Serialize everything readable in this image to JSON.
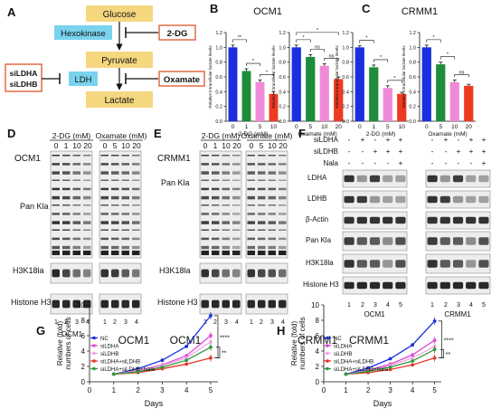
{
  "panel_labels": [
    "A",
    "B",
    "C",
    "D",
    "E",
    "F",
    "G",
    "H"
  ],
  "panel_a": {
    "metabolites": [
      "Glucose",
      "Pyruvate",
      "Lactate"
    ],
    "enzymes": [
      "Hexokinase",
      "LDH"
    ],
    "inhibitors": [
      "2-DG",
      "Oxamate"
    ],
    "knockdown": [
      "siLDHA",
      "siLDHB"
    ],
    "colors": {
      "metabolite": "#f5d77f",
      "enzyme": "#79d3ee",
      "inhibitor_border": "#e0603a"
    }
  },
  "blot_labels": {
    "pan_kla": "Pan Kla",
    "h3k18la": "H3K18la",
    "histone_h3": "Histone H3",
    "ldha": "LDHA",
    "ldhb": "LDHB",
    "beta_actin": "β-Actin",
    "lanes_4": [
      "1",
      "2",
      "3",
      "4"
    ],
    "lanes_5": [
      "1",
      "2",
      "3",
      "4",
      "5"
    ]
  },
  "panel_d": {
    "cell": "OCM1",
    "treat1": "2-DG (mM)",
    "treat2": "Oxamate (mM)",
    "doses1": [
      "0",
      "1",
      "10",
      "20"
    ],
    "doses2": [
      "0",
      "5",
      "10",
      "20"
    ]
  },
  "panel_e": {
    "cell": "CRMM1",
    "treat1": "2-DG (mM)",
    "treat2": "Oxamate (mM)",
    "doses1": [
      "0",
      "1",
      "10",
      "20"
    ],
    "doses2": [
      "0",
      "5",
      "10",
      "20"
    ]
  },
  "panel_f": {
    "conditions": [
      "siLDHA",
      "siLDHB",
      "Nala"
    ],
    "signs": [
      [
        "-",
        "+",
        "-",
        "+",
        "+"
      ],
      [
        "-",
        "-",
        "+",
        "+",
        "+"
      ],
      [
        "-",
        "-",
        "-",
        "-",
        "+"
      ]
    ],
    "cells": [
      "OCM1",
      "CRMM1"
    ]
  },
  "chart_data": [
    {
      "panel": "B",
      "type": "bar",
      "title": "OCM1",
      "xlabel": "2-DG (mM)",
      "ylabel": "Relative intracellular lactate levels",
      "categories": [
        "0",
        "1",
        "5",
        "10"
      ],
      "values": [
        1.0,
        0.68,
        0.53,
        0.37
      ],
      "errors": [
        0.03,
        0.03,
        0.03,
        0.03
      ],
      "ylim": [
        0,
        1.2
      ],
      "yticks": [
        "0.0",
        "0.2",
        "0.4",
        "0.6",
        "0.8",
        "1.0",
        "1.2"
      ],
      "colors": [
        "#1b2fe0",
        "#1e8c3a",
        "#f08ad8",
        "#ef3a22"
      ],
      "significance": [
        "**",
        "*",
        "*"
      ]
    },
    {
      "panel": "B",
      "type": "bar",
      "title": "",
      "xlabel": "Oxamate (mM)",
      "ylabel": "Relative intracellular lactate levels",
      "categories": [
        "0",
        "5",
        "10",
        "20"
      ],
      "values": [
        1.0,
        0.87,
        0.75,
        0.57
      ],
      "errors": [
        0.03,
        0.03,
        0.03,
        0.03
      ],
      "ylim": [
        0,
        1.2
      ],
      "yticks": [
        "0.0",
        "0.2",
        "0.4",
        "0.6",
        "0.8",
        "1.0",
        "1.2"
      ],
      "colors": [
        "#1b2fe0",
        "#1e8c3a",
        "#f08ad8",
        "#ef3a22"
      ],
      "significance": [
        "*",
        "ns",
        "ns",
        "*"
      ]
    },
    {
      "panel": "C",
      "type": "bar",
      "title": "CRMM1",
      "xlabel": "2-DG (mM)",
      "ylabel": "Relative intracellular lactate levels",
      "categories": [
        "0",
        "1",
        "5",
        "10"
      ],
      "values": [
        1.0,
        0.73,
        0.45,
        0.37
      ],
      "errors": [
        0.02,
        0.03,
        0.03,
        0.02
      ],
      "ylim": [
        0,
        1.2
      ],
      "yticks": [
        "0.0",
        "0.2",
        "0.4",
        "0.6",
        "0.8",
        "1.0",
        "1.2"
      ],
      "colors": [
        "#1b2fe0",
        "#1e8c3a",
        "#f08ad8",
        "#ef3a22"
      ],
      "significance": [
        "*",
        "*",
        "*"
      ]
    },
    {
      "panel": "C",
      "type": "bar",
      "title": "",
      "xlabel": "Oxamate (mM)",
      "ylabel": "Relative intracellular lactate levels",
      "categories": [
        "0",
        "5",
        "10",
        "20"
      ],
      "values": [
        1.0,
        0.77,
        0.53,
        0.48
      ],
      "errors": [
        0.03,
        0.03,
        0.03,
        0.02
      ],
      "ylim": [
        0,
        1.2
      ],
      "yticks": [
        "0.0",
        "0.2",
        "0.4",
        "0.6",
        "0.8",
        "1.0",
        "1.2"
      ],
      "colors": [
        "#1b2fe0",
        "#1e8c3a",
        "#f08ad8",
        "#ef3a22"
      ],
      "significance": [
        "*",
        "*",
        "ns"
      ]
    },
    {
      "panel": "G",
      "type": "line",
      "title": "OCM1",
      "xlabel": "Days",
      "ylabel": "Relative (fold) numbers of cells",
      "x": [
        1,
        2,
        3,
        4,
        5
      ],
      "xlim": [
        0,
        5.3
      ],
      "ylim": [
        0,
        10
      ],
      "xticks": [
        "0",
        "1",
        "2",
        "3",
        "4",
        "5"
      ],
      "yticks": [
        "0",
        "2",
        "4",
        "6",
        "8",
        "10"
      ],
      "series": [
        {
          "name": "NC",
          "color": "#1b2fe0",
          "values": [
            1,
            1.7,
            2.8,
            4.6,
            8.6
          ]
        },
        {
          "name": "siLDHA",
          "color": "#d94bd6",
          "values": [
            1,
            1.45,
            2.2,
            3.4,
            6.0
          ]
        },
        {
          "name": "siLDHB",
          "color": "#f5a3e8",
          "values": [
            1,
            1.4,
            2.1,
            3.1,
            5.2
          ]
        },
        {
          "name": "siLDHA+siLDHB",
          "color": "#e8362a",
          "values": [
            1,
            1.2,
            1.7,
            2.3,
            3.1
          ]
        },
        {
          "name": "siLDHA+siLDHB+Nala",
          "color": "#2e9a3e",
          "values": [
            1,
            1.3,
            1.9,
            2.8,
            4.5
          ]
        }
      ],
      "significance": [
        "****",
        "**"
      ]
    },
    {
      "panel": "H",
      "type": "line",
      "title": "CRMM1",
      "xlabel": "Days",
      "ylabel": "Relative (fold) numbers of cells",
      "x": [
        1,
        2,
        3,
        4,
        5
      ],
      "xlim": [
        0,
        5.3
      ],
      "ylim": [
        0,
        10
      ],
      "xticks": [
        "0",
        "1",
        "2",
        "3",
        "4",
        "5"
      ],
      "yticks": [
        "0",
        "2",
        "4",
        "6",
        "8",
        "10"
      ],
      "series": [
        {
          "name": "NC",
          "color": "#1b2fe0",
          "values": [
            1,
            1.8,
            3.0,
            4.8,
            7.9
          ]
        },
        {
          "name": "siLDHA",
          "color": "#d94bd6",
          "values": [
            1,
            1.5,
            2.3,
            3.5,
            5.4
          ]
        },
        {
          "name": "siLDHB",
          "color": "#f5a3e8",
          "values": [
            1,
            1.4,
            2.1,
            3.1,
            4.6
          ]
        },
        {
          "name": "siLDHA+siLDHB",
          "color": "#e8362a",
          "values": [
            1,
            1.2,
            1.6,
            2.2,
            3.1
          ]
        },
        {
          "name": "siLDHA+siLDHB+Nala",
          "color": "#2e9a3e",
          "values": [
            1,
            1.35,
            1.9,
            2.7,
            4.2
          ]
        }
      ],
      "significance": [
        "****",
        "**"
      ]
    }
  ]
}
